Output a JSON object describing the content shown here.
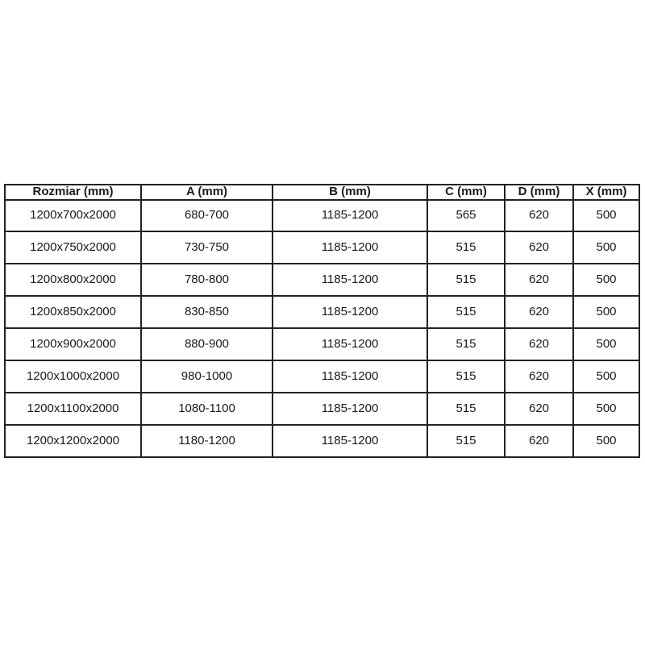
{
  "table": {
    "headers": [
      "Rozmiar (mm)",
      "A (mm)",
      "B (mm)",
      "C (mm)",
      "D (mm)",
      "X (mm)"
    ],
    "rows": [
      [
        "1200x700x2000",
        "680-700",
        "1185-1200",
        "565",
        "620",
        "500"
      ],
      [
        "1200x750x2000",
        "730-750",
        "1185-1200",
        "515",
        "620",
        "500"
      ],
      [
        "1200x800x2000",
        "780-800",
        "1185-1200",
        "515",
        "620",
        "500"
      ],
      [
        "1200x850x2000",
        "830-850",
        "1185-1200",
        "515",
        "620",
        "500"
      ],
      [
        "1200x900x2000",
        "880-900",
        "1185-1200",
        "515",
        "620",
        "500"
      ],
      [
        "1200x1000x2000",
        "980-1000",
        "1185-1200",
        "515",
        "620",
        "500"
      ],
      [
        "1200x1100x2000",
        "1080-1100",
        "1185-1200",
        "515",
        "620",
        "500"
      ],
      [
        "1200x1200x2000",
        "1180-1200",
        "1185-1200",
        "515",
        "620",
        "500"
      ]
    ],
    "border_color": "#222222",
    "text_color": "#1a1a1a",
    "background_color": "#ffffff"
  },
  "chart_data": {
    "type": "table",
    "title": "",
    "columns": [
      "Rozmiar (mm)",
      "A (mm)",
      "B (mm)",
      "C (mm)",
      "D (mm)",
      "X (mm)"
    ],
    "rows": [
      [
        "1200x700x2000",
        "680-700",
        "1185-1200",
        565,
        620,
        500
      ],
      [
        "1200x750x2000",
        "730-750",
        "1185-1200",
        515,
        620,
        500
      ],
      [
        "1200x800x2000",
        "780-800",
        "1185-1200",
        515,
        620,
        500
      ],
      [
        "1200x850x2000",
        "830-850",
        "1185-1200",
        515,
        620,
        500
      ],
      [
        "1200x900x2000",
        "880-900",
        "1185-1200",
        515,
        620,
        500
      ],
      [
        "1200x1000x2000",
        "980-1000",
        "1185-1200",
        515,
        620,
        500
      ],
      [
        "1200x1100x2000",
        "1080-1100",
        "1185-1200",
        515,
        620,
        500
      ],
      [
        "1200x1200x2000",
        "1180-1200",
        "1185-1200",
        515,
        620,
        500
      ]
    ],
    "layout_hints": {
      "header_bold": true,
      "cell_alignment": "center",
      "grid": "all-borders"
    }
  }
}
